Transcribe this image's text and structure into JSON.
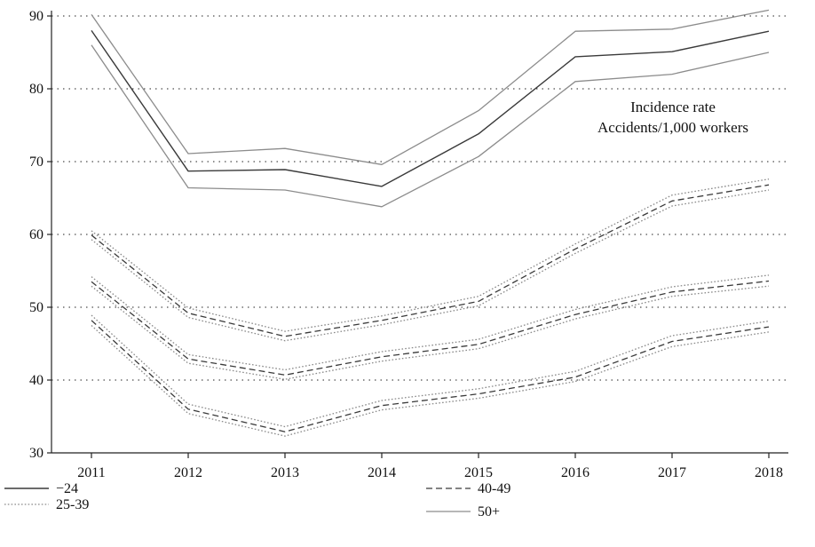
{
  "chart_data": {
    "type": "line",
    "x": [
      "2011",
      "2012",
      "2013",
      "2014",
      "2015",
      "2016",
      "2017",
      "2018"
    ],
    "ylim": [
      30,
      90
    ],
    "yticks": [
      30,
      40,
      50,
      60,
      70,
      80,
      90
    ],
    "grid": "horizontal dotted",
    "annotation": [
      "Incidence rate",
      "Accidents/1,000 workers"
    ],
    "legend": [
      {
        "label": "−24",
        "style": "solid-dark"
      },
      {
        "label": "25-39",
        "style": "dotted"
      },
      {
        "label": "40-49",
        "style": "dashed"
      },
      {
        "label": "50+",
        "style": "solid-light"
      }
    ],
    "colors": {
      "dark": "#3a3a3a",
      "light": "#8c8c8c",
      "dotted": "#8a8a8a",
      "grid": "#222222",
      "axis": "#222222"
    },
    "groups": [
      {
        "center_style": "solid-dark",
        "band_style": "solid-light",
        "center": [
          88.0,
          68.7,
          68.9,
          66.6,
          73.8,
          84.4,
          85.1,
          87.9
        ],
        "upper": [
          90.2,
          71.1,
          71.8,
          69.6,
          77.0,
          87.9,
          88.2,
          90.8
        ],
        "lower": [
          86.0,
          66.4,
          66.1,
          63.8,
          70.7,
          81.0,
          82.0,
          85.0
        ]
      },
      {
        "center_style": "dashed",
        "band_style": "dotted",
        "center": [
          59.9,
          49.2,
          46.0,
          48.2,
          50.8,
          58.0,
          64.6,
          66.8
        ],
        "upper": [
          60.5,
          49.9,
          46.7,
          48.8,
          51.5,
          58.7,
          65.4,
          67.6
        ],
        "lower": [
          59.3,
          48.6,
          45.4,
          47.6,
          50.2,
          57.4,
          63.9,
          66.1
        ]
      },
      {
        "center_style": "dashed",
        "band_style": "dotted",
        "center": [
          53.5,
          42.9,
          40.7,
          43.2,
          44.9,
          49.0,
          52.1,
          53.6
        ],
        "upper": [
          54.2,
          43.5,
          41.4,
          43.9,
          45.6,
          49.7,
          52.8,
          54.4
        ],
        "lower": [
          52.9,
          42.3,
          40.1,
          42.6,
          44.3,
          48.4,
          51.5,
          52.9
        ]
      },
      {
        "center_style": "dashed",
        "band_style": "dotted",
        "center": [
          48.2,
          36.0,
          32.9,
          36.5,
          38.1,
          40.4,
          45.3,
          47.3
        ],
        "upper": [
          48.9,
          36.7,
          33.6,
          37.2,
          38.8,
          41.2,
          46.1,
          48.1
        ],
        "lower": [
          47.5,
          35.4,
          32.3,
          35.9,
          37.5,
          39.8,
          44.6,
          46.6
        ]
      }
    ]
  }
}
